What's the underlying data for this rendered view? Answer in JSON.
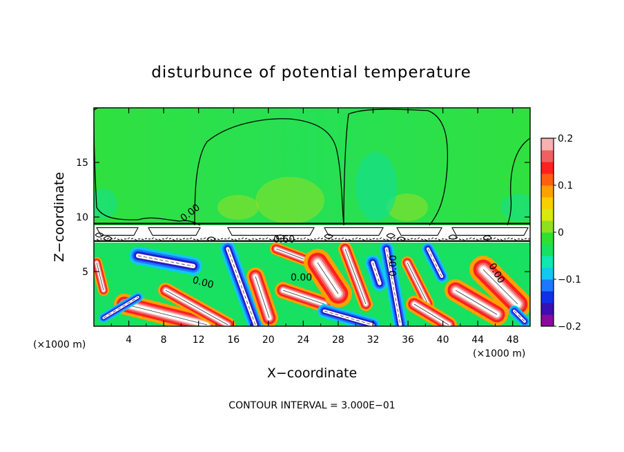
{
  "chart_data": {
    "type": "heatmap",
    "title": "disturbunce of potential temperature",
    "xlabel": "X−coordinate",
    "ylabel": "Z−coordinate",
    "x_unit_label": "(×1000 m)",
    "y_unit_label": "(×1000 m)",
    "xlim": [
      0,
      50
    ],
    "ylim": [
      0,
      20
    ],
    "x_ticks": [
      4,
      8,
      12,
      16,
      20,
      24,
      28,
      32,
      36,
      40,
      44,
      48
    ],
    "y_ticks": [
      5,
      10,
      15
    ],
    "x_tick_labels": [
      "4",
      "8",
      "12",
      "16",
      "20",
      "24",
      "28",
      "32",
      "36",
      "40",
      "44",
      "48"
    ],
    "y_tick_labels": [
      "5",
      "10",
      "15"
    ],
    "colorbar": {
      "min": -0.2,
      "max": 0.2,
      "ticks": [
        0.2,
        0.1,
        0,
        -0.1,
        -0.2
      ],
      "tick_labels": [
        "0.2",
        "0.1",
        "0",
        "−0.1",
        "−0.2"
      ],
      "colors": [
        "#8a0a9e",
        "#3a10b0",
        "#1030e8",
        "#1e78ff",
        "#10c8f0",
        "#10e8b0",
        "#18e060",
        "#30e030",
        "#90e020",
        "#d8e810",
        "#f8d000",
        "#ffa000",
        "#ff6010",
        "#ff2020",
        "#f06060",
        "#f8b0b0"
      ]
    },
    "contour_labels": [
      "0.00",
      "0.60",
      "0.00",
      "0.00",
      "0.00",
      "0.00"
    ],
    "contour_interval_text": "CONTOUR INTERVAL = 3.000E−01",
    "layers": [
      {
        "name": "upper",
        "z_range": [
          9.4,
          20
        ],
        "value_range": [
          -0.02,
          0.06
        ]
      },
      {
        "name": "middle",
        "z_range": [
          7.8,
          9.4
        ],
        "value_range": [
          -0.2,
          0.2
        ]
      },
      {
        "name": "lower",
        "z_range": [
          0,
          7.8
        ],
        "value_range": [
          -0.2,
          0.2
        ]
      }
    ]
  }
}
